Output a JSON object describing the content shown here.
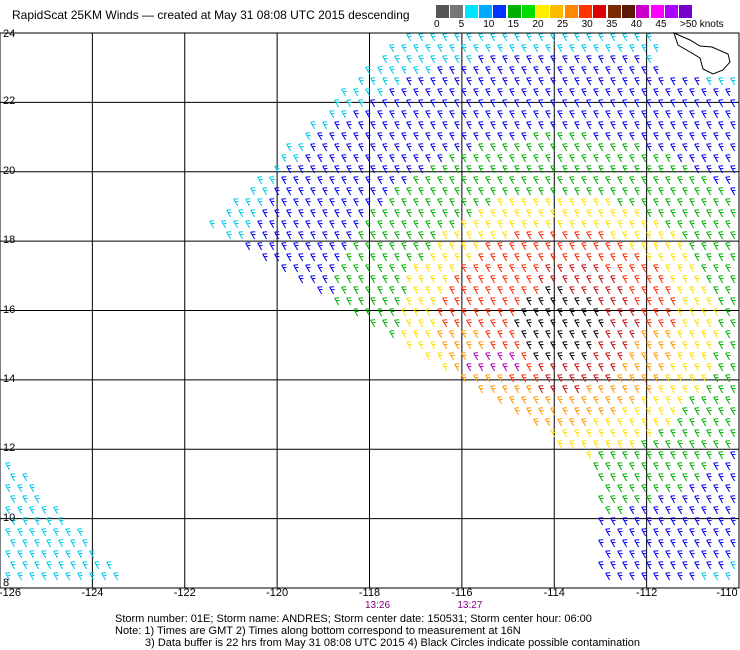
{
  "title": "RapidScat 25KM Winds — created at May 31 08:08 UTC 2015 descending",
  "legend": {
    "labels": [
      "0",
      "5",
      "10",
      "15",
      "20",
      "25",
      "30",
      "35",
      "40",
      "45",
      ">50 knots"
    ],
    "colors": [
      "#555555",
      "#777777",
      "#00e5ff",
      "#00aaff",
      "#0033ff",
      "#00b000",
      "#00dd00",
      "#ffee00",
      "#ffbb00",
      "#ff8800",
      "#ff3300",
      "#dd0000",
      "#7a2a00",
      "#5a1a00",
      "#cc00cc",
      "#ff00ff",
      "#aa00ff",
      "#7700cc"
    ]
  },
  "axes": {
    "lon_ticks": [
      "-126",
      "-124",
      "-122",
      "-120",
      "-118",
      "-116",
      "-114",
      "-112",
      "-110"
    ],
    "lat_ticks": [
      "24",
      "22",
      "20",
      "18",
      "16",
      "14",
      "12",
      "10",
      "8"
    ],
    "lon_range": [
      -126,
      -110
    ],
    "lat_range": [
      8,
      24
    ]
  },
  "pass_times": [
    {
      "label": "13:26",
      "lon": -118
    },
    {
      "label": "13:27",
      "lon": -116
    }
  ],
  "storm_line": "Storm number: 01E;  Storm name: ANDRES;  Storm center date: 150531;  Storm center hour: 06:00",
  "notes": [
    "Note: 1) Times are GMT  2) Times along bottom correspond to measurement at 16N",
    "3) Data buffer is 22 hrs from May 31 08:08 UTC 2015  4) Black Circles indicate possible contamination"
  ],
  "wind_colors": {
    "calm": "#00c8e8",
    "light": "#0000ee",
    "moderate": "#00b000",
    "fresh": "#ffe000",
    "strong": "#ff9900",
    "gale": "#ff2a00",
    "storm": "#c01010",
    "severe": "#000000",
    "extreme": "#b000b0"
  }
}
